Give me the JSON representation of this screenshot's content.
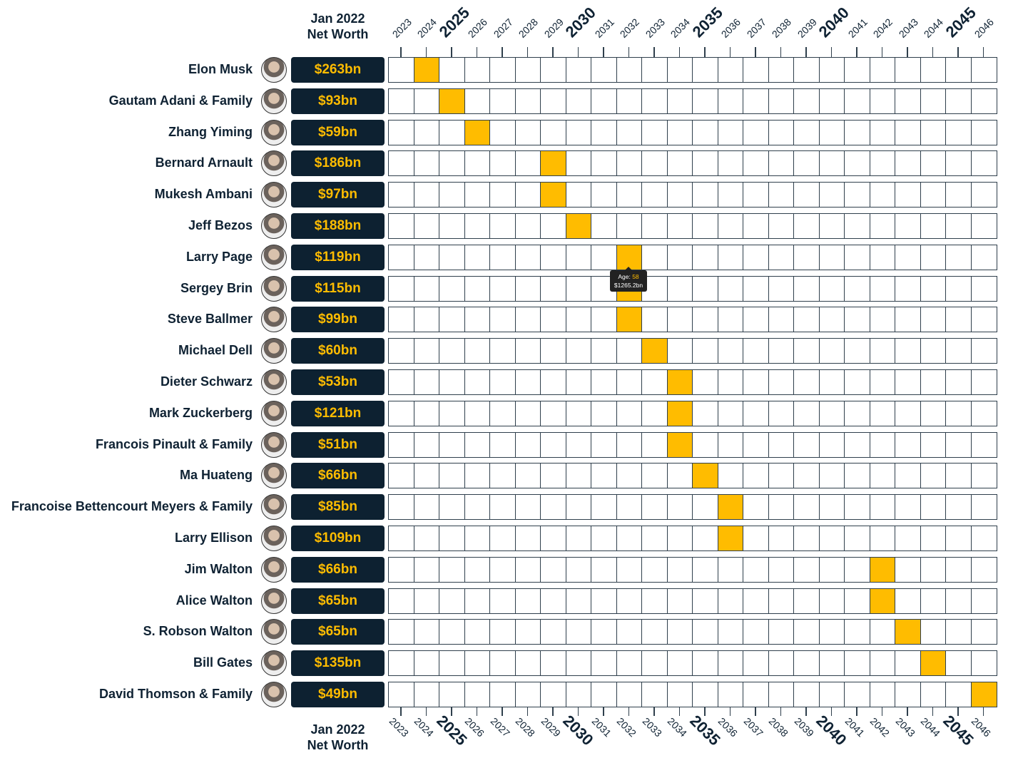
{
  "header": {
    "line1": "Jan 2022",
    "line2": "Net Worth"
  },
  "footer": {
    "line1": "Jan 2022",
    "line2": "Net Worth"
  },
  "colors": {
    "highlight": "#ffbc00",
    "label_bg": "#0d2131",
    "grid": "#2f3f4c"
  },
  "tooltip": {
    "age_label": "Age:",
    "age": "58",
    "value": "$1265.2bn"
  },
  "chart_data": {
    "type": "table",
    "x_years": [
      2023,
      2024,
      2025,
      2026,
      2027,
      2028,
      2029,
      2030,
      2031,
      2032,
      2033,
      2034,
      2035,
      2036,
      2037,
      2038,
      2039,
      2040,
      2041,
      2042,
      2043,
      2044,
      2045,
      2046
    ],
    "bold_years": [
      2025,
      2030,
      2035,
      2040,
      2045
    ],
    "rows": [
      {
        "name": "Elon Musk",
        "net_worth": "$263bn",
        "year": 2024
      },
      {
        "name": "Gautam Adani & Family",
        "net_worth": "$93bn",
        "year": 2025
      },
      {
        "name": "Zhang Yiming",
        "net_worth": "$59bn",
        "year": 2026
      },
      {
        "name": "Bernard Arnault",
        "net_worth": "$186bn",
        "year": 2029
      },
      {
        "name": "Mukesh Ambani",
        "net_worth": "$97bn",
        "year": 2029
      },
      {
        "name": "Jeff Bezos",
        "net_worth": "$188bn",
        "year": 2030
      },
      {
        "name": "Larry Page",
        "net_worth": "$119bn",
        "year": 2032
      },
      {
        "name": "Sergey Brin",
        "net_worth": "$115bn",
        "year": 2032
      },
      {
        "name": "Steve Ballmer",
        "net_worth": "$99bn",
        "year": 2032
      },
      {
        "name": "Michael Dell",
        "net_worth": "$60bn",
        "year": 2033
      },
      {
        "name": "Dieter Schwarz",
        "net_worth": "$53bn",
        "year": 2034
      },
      {
        "name": "Mark Zuckerberg",
        "net_worth": "$121bn",
        "year": 2034
      },
      {
        "name": "Francois Pinault & Family",
        "net_worth": "$51bn",
        "year": 2034
      },
      {
        "name": "Ma Huateng",
        "net_worth": "$66bn",
        "year": 2035
      },
      {
        "name": "Francoise Bettencourt Meyers & Family",
        "net_worth": "$85bn",
        "year": 2036
      },
      {
        "name": "Larry Ellison",
        "net_worth": "$109bn",
        "year": 2036
      },
      {
        "name": "Jim Walton",
        "net_worth": "$66bn",
        "year": 2042
      },
      {
        "name": "Alice Walton",
        "net_worth": "$65bn",
        "year": 2042
      },
      {
        "name": "S. Robson Walton",
        "net_worth": "$65bn",
        "year": 2043
      },
      {
        "name": "Bill Gates",
        "net_worth": "$135bn",
        "year": 2044
      },
      {
        "name": "David Thomson & Family",
        "net_worth": "$49bn",
        "year": 2046
      }
    ]
  }
}
